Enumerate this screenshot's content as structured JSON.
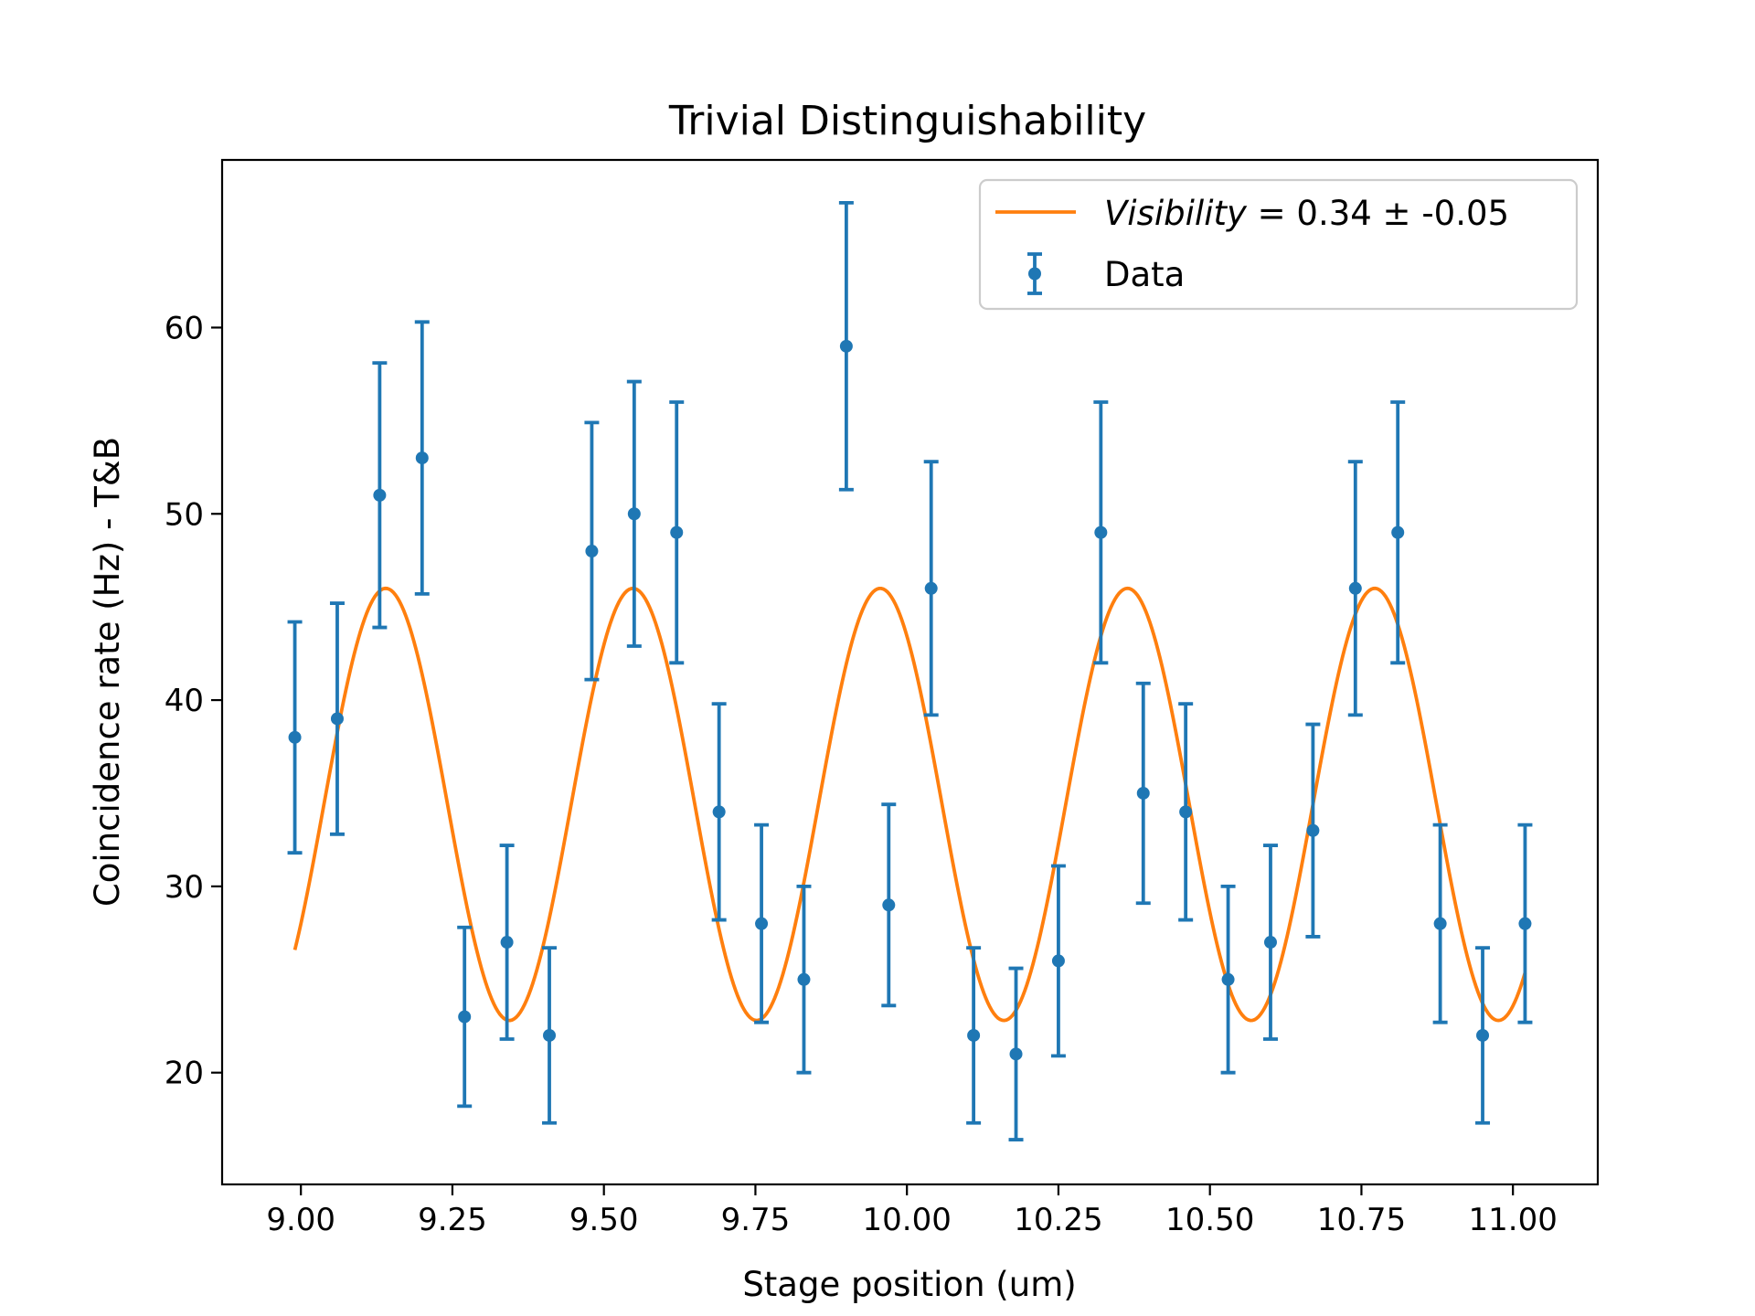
{
  "chart_data": {
    "type": "scatter",
    "title": "Trivial Distinguishability",
    "xlabel": "Stage position (um)",
    "ylabel": "Coincidence rate (Hz) - T&B",
    "xlim": [
      8.87,
      11.14
    ],
    "ylim": [
      14,
      69
    ],
    "xticks": [
      9.0,
      9.25,
      9.5,
      9.75,
      10.0,
      10.25,
      10.5,
      10.75,
      11.0
    ],
    "xtick_labels": [
      "9.00",
      "9.25",
      "9.50",
      "9.75",
      "10.00",
      "10.25",
      "10.50",
      "10.75",
      "11.00"
    ],
    "yticks": [
      20,
      30,
      40,
      50,
      60
    ],
    "ytick_labels": [
      "20",
      "30",
      "40",
      "50",
      "60"
    ],
    "grid": false,
    "legend_position": "top-right",
    "colors": {
      "data": "#1f77b4",
      "fit": "#ff7f0e"
    },
    "series": [
      {
        "name": "Data",
        "kind": "errorbar",
        "x": [
          8.99,
          9.06,
          9.13,
          9.2,
          9.27,
          9.34,
          9.41,
          9.48,
          9.55,
          9.62,
          9.69,
          9.76,
          9.83,
          9.9,
          9.97,
          10.04,
          10.11,
          10.18,
          10.25,
          10.32,
          10.39,
          10.46,
          10.53,
          10.6,
          10.67,
          10.74,
          10.81,
          10.88,
          10.95,
          11.02
        ],
        "y": [
          38,
          39,
          51,
          53,
          23,
          27,
          22,
          48,
          50,
          49,
          34,
          28,
          25,
          59,
          29,
          46,
          22,
          21,
          26,
          49,
          35,
          34,
          25,
          27,
          33,
          46,
          49,
          28,
          22,
          28
        ],
        "yerr": [
          6.2,
          6.2,
          7.1,
          7.3,
          4.8,
          5.2,
          4.7,
          6.9,
          7.1,
          7.0,
          5.8,
          5.3,
          5.0,
          7.7,
          5.4,
          6.8,
          4.7,
          4.6,
          5.1,
          7.0,
          5.9,
          5.8,
          5.0,
          5.2,
          5.7,
          6.8,
          7.0,
          5.3,
          4.7,
          5.3
        ]
      },
      {
        "name": "Visibility = 0.34 ± -0.05",
        "name_italic": "Visibility",
        "name_rest": " = 0.34 ± -0.05",
        "kind": "fit",
        "model": "offset + amplitude * sin(2π(x - x0)/period)",
        "offset": 34.4,
        "amplitude": 11.6,
        "period": 0.408,
        "x0": 9.038,
        "x_range": [
          8.99,
          11.02
        ]
      }
    ]
  }
}
